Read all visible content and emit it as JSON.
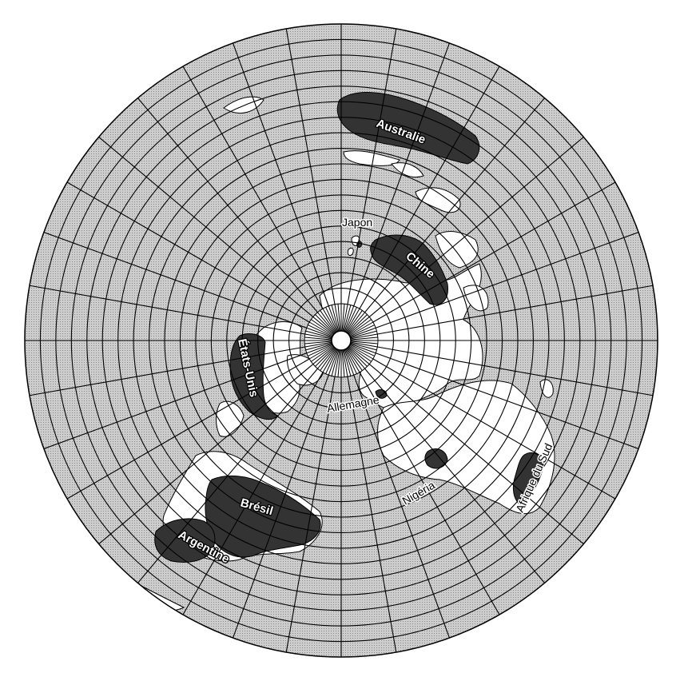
{
  "map": {
    "projection": "azimuthal-equidistant-north-polar",
    "colors": {
      "ocean": "#c9c9c9",
      "land": "#ffffff",
      "highlight": "#333333",
      "grid": "#000000"
    },
    "labels": {
      "australia": "Australie",
      "japan": "Japon",
      "china": "Chine",
      "usa": "États-Unis",
      "germany": "Allemagne",
      "brazil": "Brésil",
      "argentina": "Argentine",
      "nigeria": "Nigéria",
      "south_africa": "Afrique du Sud"
    }
  }
}
